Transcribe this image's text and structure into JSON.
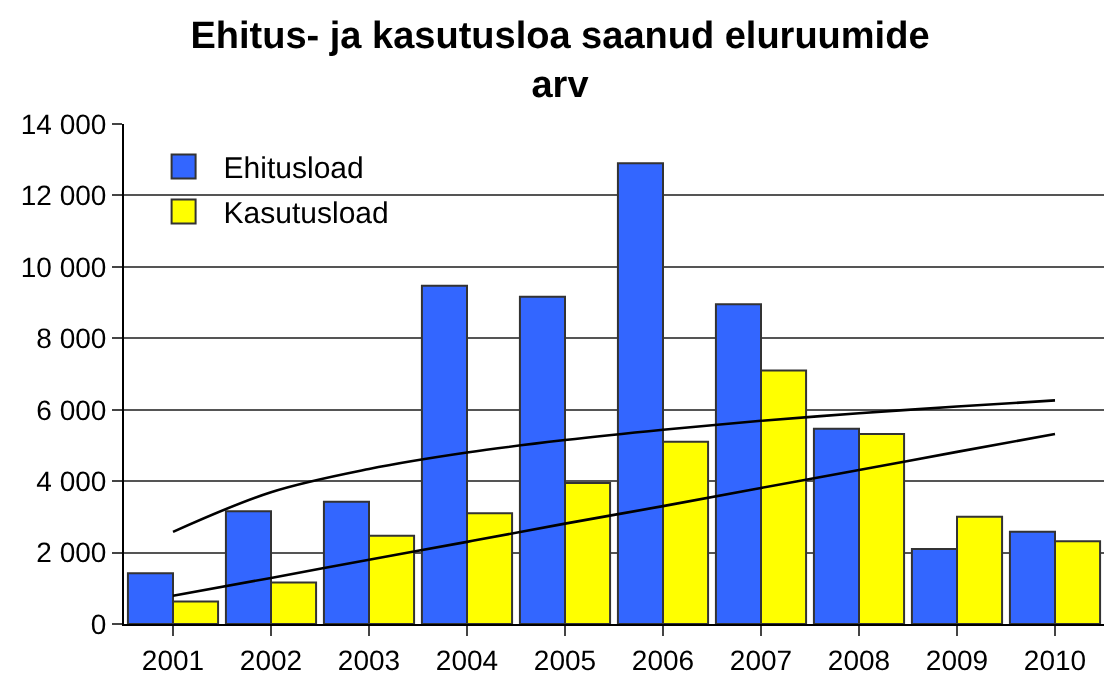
{
  "chart_data": {
    "type": "bar",
    "title": "Ehitus- ja kasutusloa saanud eluruumide arv",
    "categories": [
      "2001",
      "2002",
      "2003",
      "2004",
      "2005",
      "2006",
      "2007",
      "2008",
      "2009",
      "2010"
    ],
    "series": [
      {
        "name": "Ehitusload",
        "color": "#3366ff",
        "values": [
          1420,
          3160,
          3420,
          9470,
          9160,
          12900,
          8950,
          5470,
          2100,
          2580
        ]
      },
      {
        "name": "Kasutusload",
        "color": "#ffff00",
        "values": [
          630,
          1160,
          2470,
          3100,
          3950,
          5100,
          7100,
          5320,
          3000,
          2320
        ]
      },
      {
        "type": "line",
        "color": "#000000",
        "values": [
          2580,
          3690,
          4340,
          4800,
          5150,
          5440,
          5690,
          5900,
          6090,
          6260
        ]
      },
      {
        "type": "line",
        "color": "#000000",
        "values": [
          790,
          1290,
          1800,
          2300,
          2810,
          3300,
          3810,
          4310,
          4820,
          5320
        ]
      }
    ],
    "ylim": [
      0,
      14000
    ],
    "yticks": [
      {
        "value": 0,
        "label": "0"
      },
      {
        "value": 2000,
        "label": "2 000"
      },
      {
        "value": 4000,
        "label": "4 000"
      },
      {
        "value": 6000,
        "label": "6 000"
      },
      {
        "value": 8000,
        "label": "8 000"
      },
      {
        "value": 10000,
        "label": "10 000"
      },
      {
        "value": 12000,
        "label": "12 000"
      },
      {
        "value": 14000,
        "label": "14 000"
      }
    ],
    "grid": "y",
    "legend": "top left",
    "marker": "none"
  }
}
